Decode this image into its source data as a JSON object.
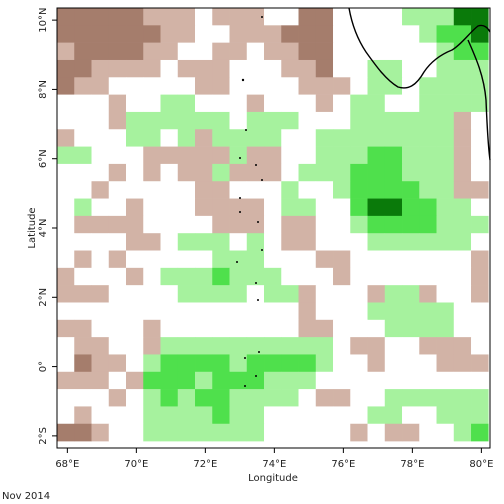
{
  "chart_data": {
    "type": "heatmap",
    "xlabel": "Longitude",
    "ylabel": "Latitude",
    "footer": "Nov 2014",
    "xlim": [
      67.7,
      80.25
    ],
    "ylim": [
      -2.35,
      10.35
    ],
    "xticks": [
      {
        "value": 68,
        "label": "68°E"
      },
      {
        "value": 70,
        "label": "70°E"
      },
      {
        "value": 72,
        "label": "72°E"
      },
      {
        "value": 74,
        "label": "74°E"
      },
      {
        "value": 76,
        "label": "76°E"
      },
      {
        "value": 78,
        "label": "78°E"
      },
      {
        "value": 80,
        "label": "80°E"
      }
    ],
    "yticks": [
      {
        "value": -2,
        "label": "2°S"
      },
      {
        "value": 0,
        "label": "0°"
      },
      {
        "value": 2,
        "label": "2°N"
      },
      {
        "value": 4,
        "label": "4°N"
      },
      {
        "value": 6,
        "label": "6°N"
      },
      {
        "value": 8,
        "label": "8°N"
      },
      {
        "value": 10,
        "label": "10°N"
      }
    ],
    "levels": [
      -2,
      -1,
      0,
      1,
      2,
      3
    ],
    "colors": [
      "#a57d6c",
      "#d2b3a6",
      "#ffffff",
      "#a6f29e",
      "#4fe04c",
      "#0a7a0a"
    ],
    "x": [
      67.95,
      68.45,
      68.95,
      69.45,
      69.95,
      70.45,
      70.95,
      71.45,
      71.95,
      72.45,
      72.95,
      73.45,
      73.95,
      74.45,
      74.95,
      75.45,
      75.95,
      76.45,
      76.95,
      77.45,
      77.95,
      78.45,
      78.95,
      79.45,
      79.95
    ],
    "y": [
      10.1,
      9.6,
      9.1,
      8.6,
      8.1,
      7.6,
      7.1,
      6.6,
      6.1,
      5.6,
      5.1,
      4.6,
      4.1,
      3.6,
      3.1,
      2.6,
      2.1,
      1.6,
      1.1,
      0.6,
      0.1,
      -0.4,
      -0.9,
      -1.4,
      -1.9
    ],
    "values": [
      [
        -2,
        -2,
        -2,
        -2,
        -2,
        -1,
        -1,
        -1,
        0,
        -1,
        -1,
        -1,
        0,
        0,
        -2,
        -2,
        0,
        0,
        0,
        0,
        1,
        1,
        1,
        3,
        3
      ],
      [
        -2,
        -2,
        -2,
        -2,
        -2,
        -2,
        -1,
        -1,
        0,
        0,
        -1,
        -1,
        -1,
        -2,
        -2,
        -2,
        0,
        0,
        0,
        0,
        0,
        1,
        2,
        2,
        3
      ],
      [
        -1,
        -2,
        -2,
        -2,
        -2,
        -1,
        -1,
        0,
        0,
        -1,
        -1,
        0,
        -1,
        -1,
        -2,
        -2,
        0,
        0,
        0,
        0,
        0,
        0,
        1,
        2,
        2
      ],
      [
        -2,
        -2,
        -1,
        -1,
        -1,
        -1,
        0,
        -1,
        -1,
        -1,
        0,
        0,
        0,
        -1,
        -1,
        -2,
        0,
        0,
        1,
        1,
        0,
        0,
        1,
        1,
        1
      ],
      [
        -2,
        -1,
        -1,
        0,
        0,
        0,
        0,
        0,
        -1,
        -1,
        0,
        0,
        0,
        0,
        -1,
        -1,
        -1,
        0,
        1,
        1,
        0,
        1,
        1,
        1,
        1
      ],
      [
        0,
        0,
        0,
        -1,
        0,
        0,
        1,
        1,
        0,
        0,
        0,
        -1,
        0,
        0,
        0,
        -1,
        0,
        1,
        1,
        0,
        0,
        1,
        1,
        1,
        1
      ],
      [
        0,
        0,
        0,
        -1,
        1,
        1,
        1,
        1,
        1,
        1,
        0,
        1,
        1,
        1,
        0,
        0,
        0,
        1,
        1,
        1,
        1,
        1,
        1,
        -1,
        0
      ],
      [
        -1,
        0,
        0,
        0,
        1,
        1,
        0,
        1,
        -1,
        1,
        1,
        1,
        1,
        0,
        0,
        1,
        1,
        1,
        1,
        1,
        1,
        1,
        1,
        -1,
        0
      ],
      [
        1,
        1,
        0,
        0,
        0,
        -1,
        -1,
        -1,
        -1,
        -1,
        1,
        -1,
        -1,
        0,
        0,
        1,
        1,
        1,
        2,
        2,
        1,
        1,
        1,
        -1,
        0
      ],
      [
        0,
        0,
        0,
        -1,
        0,
        -1,
        0,
        -1,
        -1,
        1,
        -1,
        -1,
        -1,
        0,
        1,
        1,
        1,
        2,
        2,
        2,
        1,
        1,
        1,
        -1,
        0
      ],
      [
        0,
        0,
        -1,
        0,
        0,
        0,
        0,
        0,
        -1,
        -1,
        0,
        0,
        0,
        1,
        0,
        0,
        1,
        2,
        2,
        2,
        2,
        1,
        1,
        -1,
        -1
      ],
      [
        0,
        1,
        0,
        0,
        -1,
        0,
        0,
        0,
        -1,
        -1,
        -1,
        -1,
        0,
        1,
        1,
        0,
        0,
        2,
        3,
        3,
        2,
        2,
        1,
        1,
        0
      ],
      [
        0,
        -1,
        -1,
        -1,
        -1,
        0,
        0,
        0,
        0,
        -1,
        -1,
        -1,
        0,
        -1,
        -1,
        0,
        0,
        1,
        2,
        2,
        2,
        2,
        1,
        1,
        1
      ],
      [
        0,
        0,
        0,
        0,
        -1,
        -1,
        0,
        1,
        1,
        1,
        0,
        1,
        0,
        -1,
        -1,
        0,
        0,
        0,
        1,
        1,
        1,
        1,
        1,
        1,
        0
      ],
      [
        0,
        -1,
        0,
        -1,
        0,
        0,
        0,
        0,
        0,
        1,
        1,
        1,
        0,
        0,
        0,
        -1,
        -1,
        0,
        0,
        0,
        0,
        0,
        0,
        0,
        -1
      ],
      [
        -1,
        0,
        0,
        0,
        -1,
        0,
        1,
        1,
        1,
        2,
        1,
        1,
        1,
        0,
        0,
        0,
        -1,
        0,
        0,
        0,
        0,
        0,
        0,
        0,
        -1
      ],
      [
        -1,
        -1,
        -1,
        0,
        0,
        0,
        0,
        1,
        1,
        1,
        1,
        0,
        1,
        1,
        -1,
        0,
        0,
        0,
        -1,
        1,
        1,
        -1,
        0,
        0,
        -1
      ],
      [
        0,
        0,
        0,
        0,
        0,
        0,
        0,
        0,
        0,
        0,
        0,
        0,
        0,
        0,
        -1,
        0,
        0,
        0,
        1,
        1,
        1,
        1,
        1,
        0,
        0
      ],
      [
        -1,
        -1,
        0,
        0,
        0,
        -1,
        0,
        0,
        0,
        0,
        0,
        0,
        0,
        0,
        -1,
        -1,
        0,
        0,
        0,
        1,
        1,
        1,
        1,
        0,
        0
      ],
      [
        0,
        -1,
        -1,
        0,
        0,
        -1,
        1,
        1,
        1,
        1,
        1,
        1,
        1,
        1,
        1,
        1,
        0,
        -1,
        -1,
        0,
        0,
        -1,
        -1,
        -1,
        0
      ],
      [
        0,
        -2,
        -1,
        -1,
        0,
        1,
        2,
        2,
        2,
        2,
        1,
        2,
        2,
        2,
        2,
        1,
        0,
        0,
        -1,
        0,
        0,
        0,
        -1,
        -1,
        -1
      ],
      [
        -1,
        -1,
        -1,
        0,
        -1,
        2,
        2,
        2,
        1,
        2,
        2,
        2,
        1,
        1,
        1,
        0,
        0,
        0,
        0,
        0,
        0,
        0,
        0,
        0,
        0
      ],
      [
        0,
        0,
        0,
        -1,
        0,
        1,
        2,
        1,
        2,
        2,
        1,
        1,
        1,
        1,
        0,
        -1,
        -1,
        0,
        0,
        1,
        1,
        1,
        1,
        1,
        1
      ],
      [
        0,
        -1,
        0,
        0,
        0,
        1,
        1,
        1,
        1,
        2,
        1,
        1,
        0,
        0,
        0,
        0,
        0,
        0,
        1,
        1,
        0,
        0,
        1,
        1,
        1
      ],
      [
        -2,
        -2,
        -1,
        0,
        0,
        1,
        1,
        1,
        1,
        1,
        1,
        1,
        0,
        0,
        0,
        0,
        0,
        -1,
        0,
        -1,
        -1,
        0,
        0,
        1,
        2
      ]
    ]
  }
}
